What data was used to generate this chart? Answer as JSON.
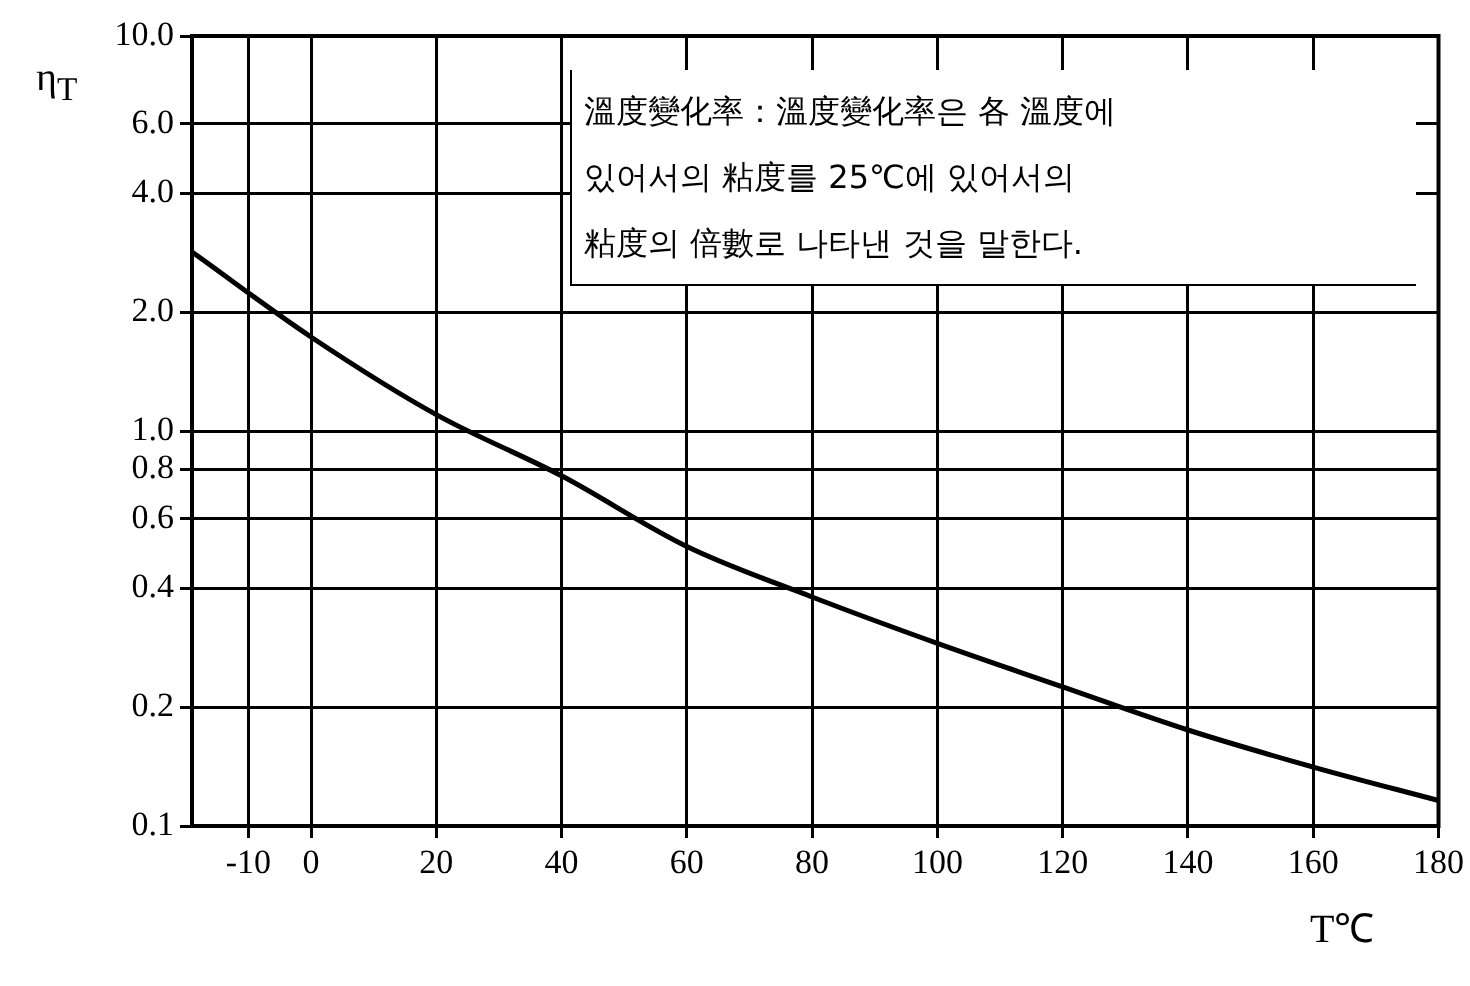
{
  "chart_data": {
    "type": "line",
    "xlabel": "T℃",
    "ylabel": "η$_{T}$",
    "annotations": [
      "溫度變化率：溫度變化率은 各 溫度에\n있어서의 粘度를 25℃에 있어서의\n粘度의 倍數로 나타낸 것을 말한다."
    ],
    "x": [
      -19,
      0,
      20,
      40,
      60,
      80,
      100,
      120,
      140,
      160,
      180
    ],
    "series": [
      {
        "color": "#000000",
        "values": [
          2.84,
          1.73,
          1.1,
          0.77,
          0.51,
          0.38,
          0.29,
          0.225,
          0.175,
          0.141,
          0.116
        ]
      }
    ],
    "xlim": [
      -19,
      180
    ],
    "xticks": [
      -10,
      0,
      20,
      40,
      60,
      80,
      100,
      120,
      140,
      160,
      180
    ],
    "ylim": [
      0.1,
      10
    ],
    "yticks": [
      {
        "value": 0.1,
        "label": "0.1"
      },
      {
        "value": 0.2,
        "label": "0.2"
      },
      {
        "value": 0.4,
        "label": "0.4"
      },
      {
        "value": 0.6,
        "label": "0.6"
      },
      {
        "value": 0.8,
        "label": "0.8"
      },
      {
        "value": 1,
        "label": "1.0"
      },
      {
        "value": 2,
        "label": "2.0"
      },
      {
        "value": 4,
        "label": "4.0"
      },
      {
        "value": 6,
        "label": "6.0"
      },
      {
        "value": 10,
        "label": "10.0"
      }
    ],
    "log": true,
    "grid": true,
    "legend": false,
    "marker": "none",
    "line_style": "solid"
  }
}
